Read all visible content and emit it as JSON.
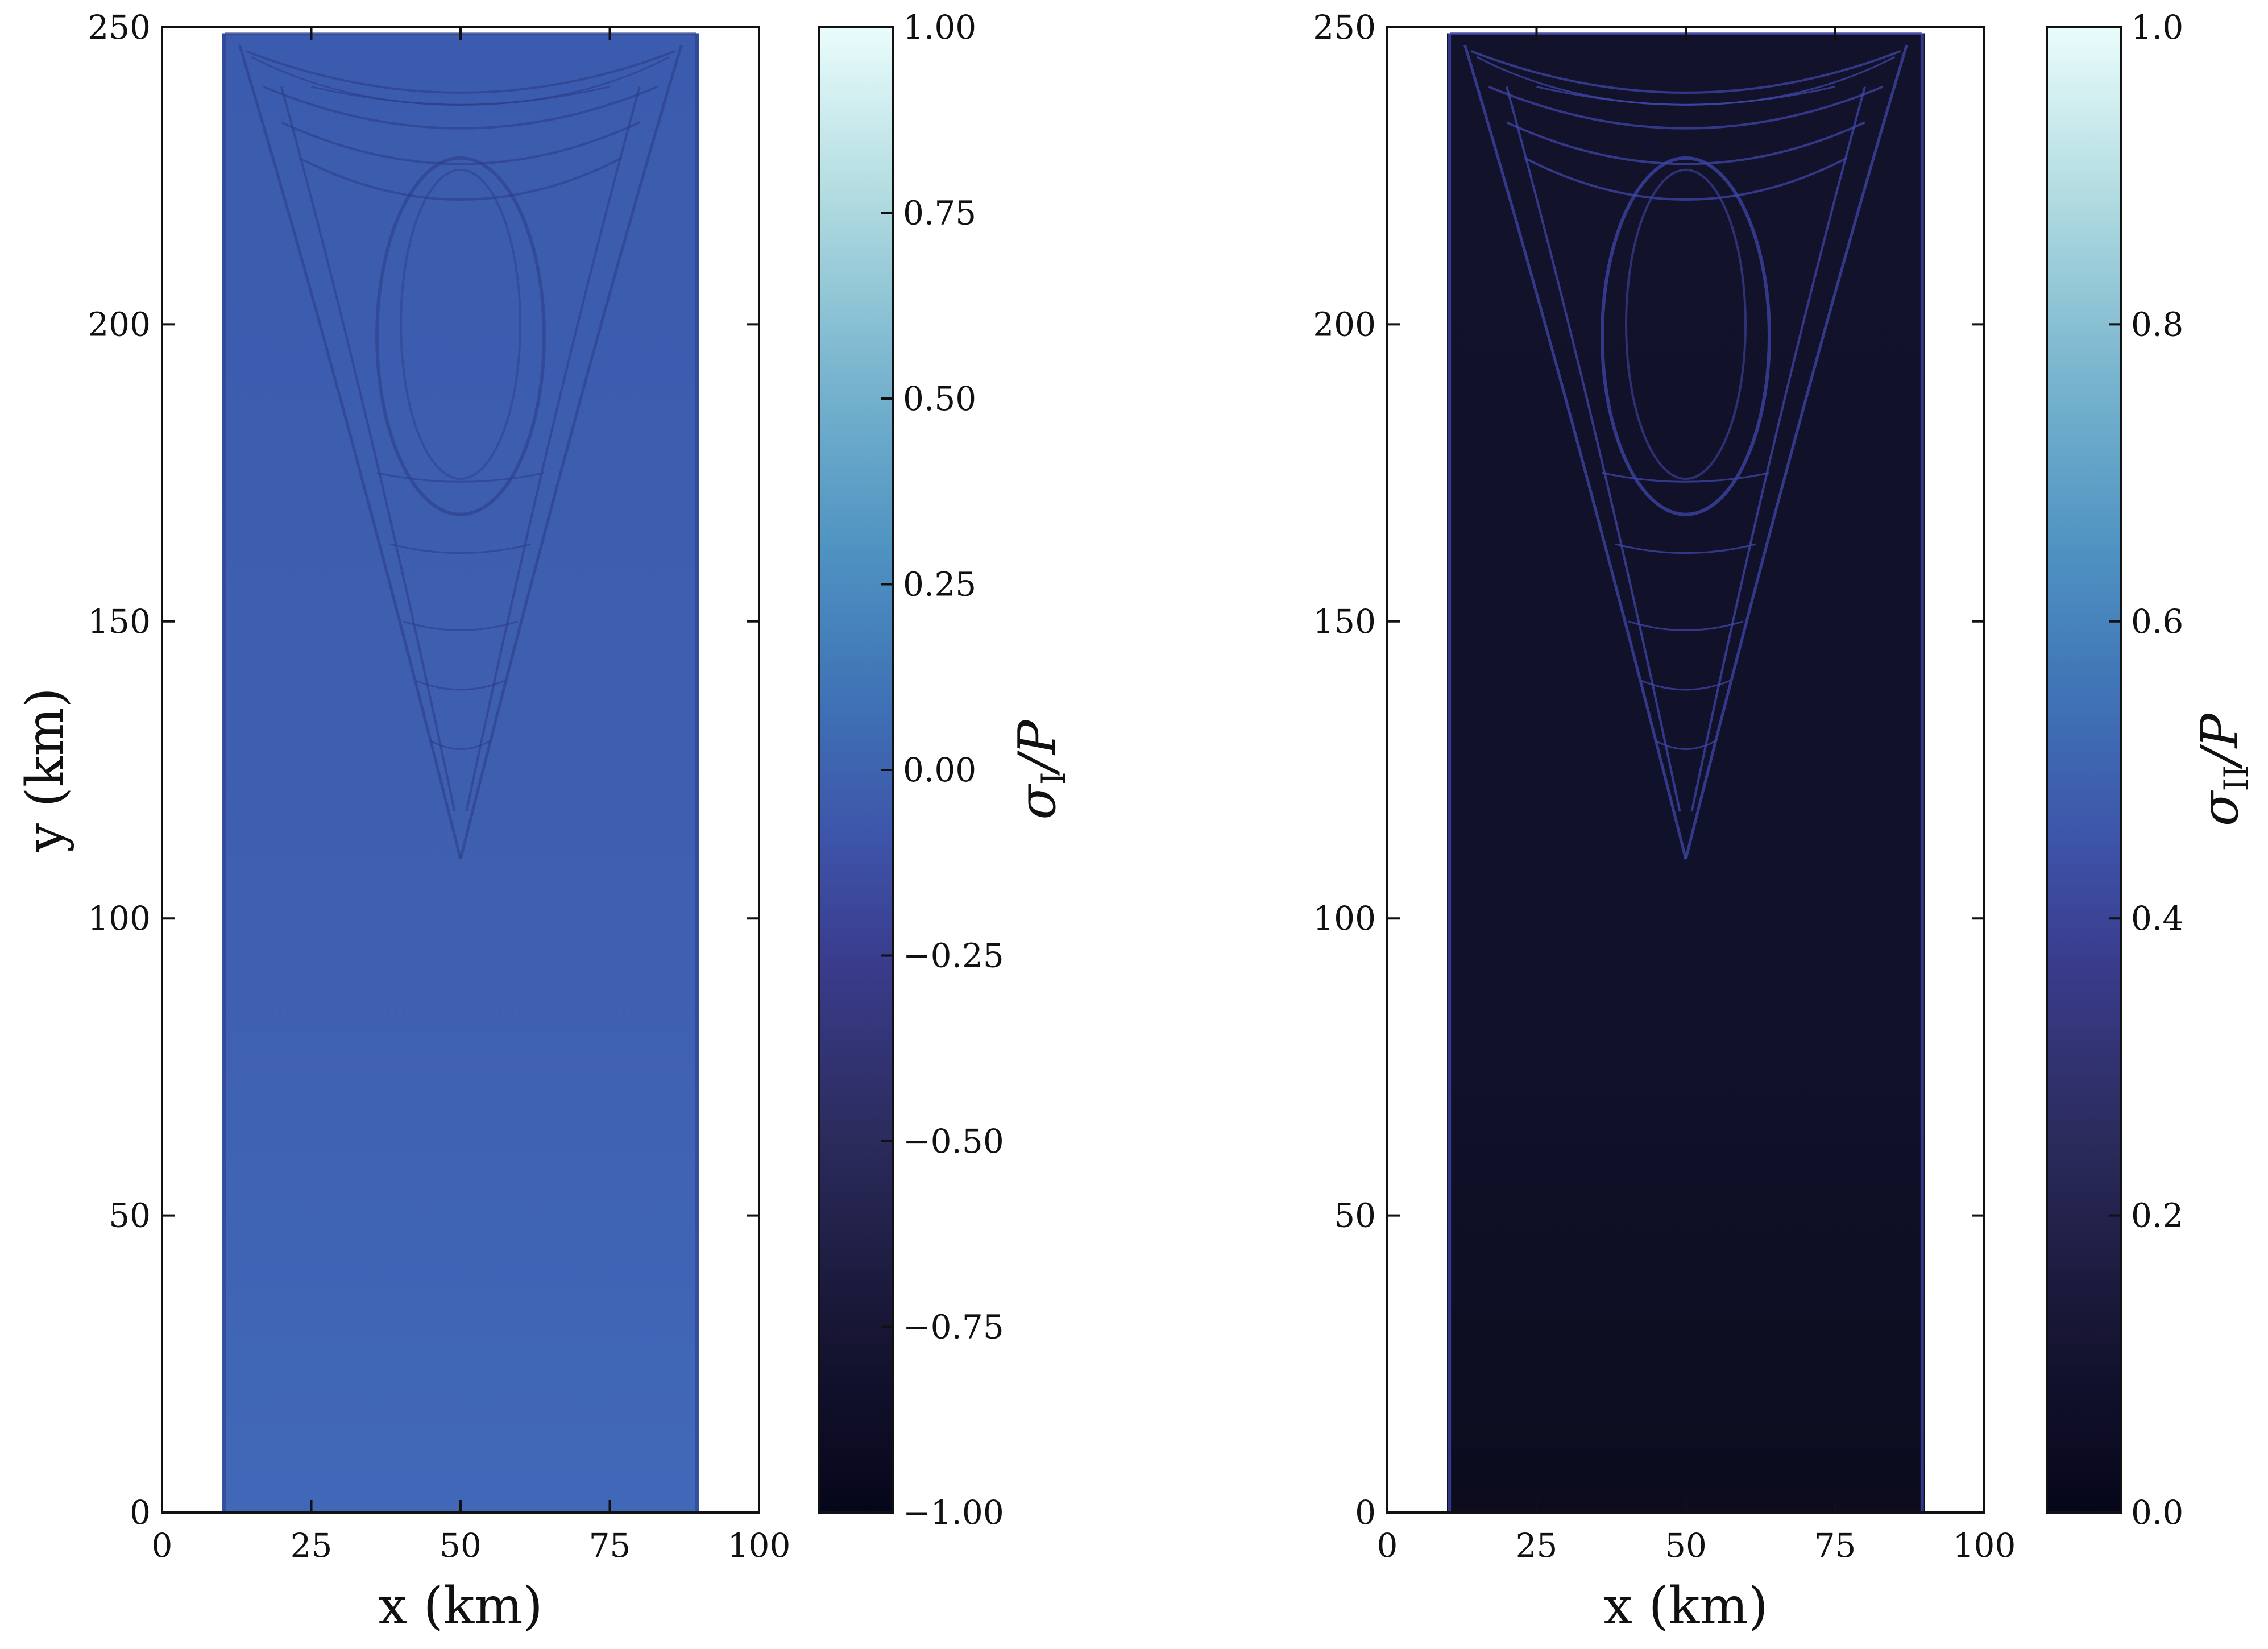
{
  "chart_data": [
    {
      "type": "heatmap",
      "panel": "left",
      "title": "",
      "xlabel": "x (km)",
      "ylabel": "y (km)",
      "xlim": [
        0,
        100
      ],
      "ylim": [
        0,
        250
      ],
      "xticks": [
        0,
        25,
        50,
        75,
        100
      ],
      "yticks": [
        0,
        50,
        100,
        150,
        200,
        250
      ],
      "domain_x": [
        10,
        90
      ],
      "domain_y": [
        0,
        249
      ],
      "colorbar": {
        "label": "σ",
        "subscript": "I",
        "suffix": "/P",
        "range": [
          -1.0,
          1.0
        ],
        "ticks": [
          "−1.00",
          "−0.75",
          "−0.50",
          "−0.25",
          "0.00",
          "0.25",
          "0.50",
          "0.75",
          "1.00"
        ],
        "tick_values": [
          -1.0,
          -0.75,
          -0.5,
          -0.25,
          0.0,
          0.25,
          0.5,
          0.75,
          1.0
        ]
      },
      "colors": {
        "field": "#3d63b0",
        "feature": "#2b3a86"
      }
    },
    {
      "type": "heatmap",
      "panel": "right",
      "title": "",
      "xlabel": "x (km)",
      "ylabel": "",
      "xlim": [
        0,
        100
      ],
      "ylim": [
        0,
        250
      ],
      "xticks": [
        0,
        25,
        50,
        75,
        100
      ],
      "yticks": [
        0,
        50,
        100,
        150,
        200,
        250
      ],
      "domain_x": [
        10,
        90
      ],
      "domain_y": [
        0,
        249
      ],
      "colorbar": {
        "label": "σ",
        "subscript": "II",
        "suffix": "/P",
        "range": [
          0.0,
          1.0
        ],
        "ticks": [
          "0.0",
          "0.2",
          "0.4",
          "0.6",
          "0.8",
          "1.0"
        ],
        "tick_values": [
          0.0,
          0.2,
          0.4,
          0.6,
          0.8,
          1.0
        ]
      },
      "colors": {
        "field": "#0f1024",
        "feature": "#3f47a8"
      }
    }
  ]
}
